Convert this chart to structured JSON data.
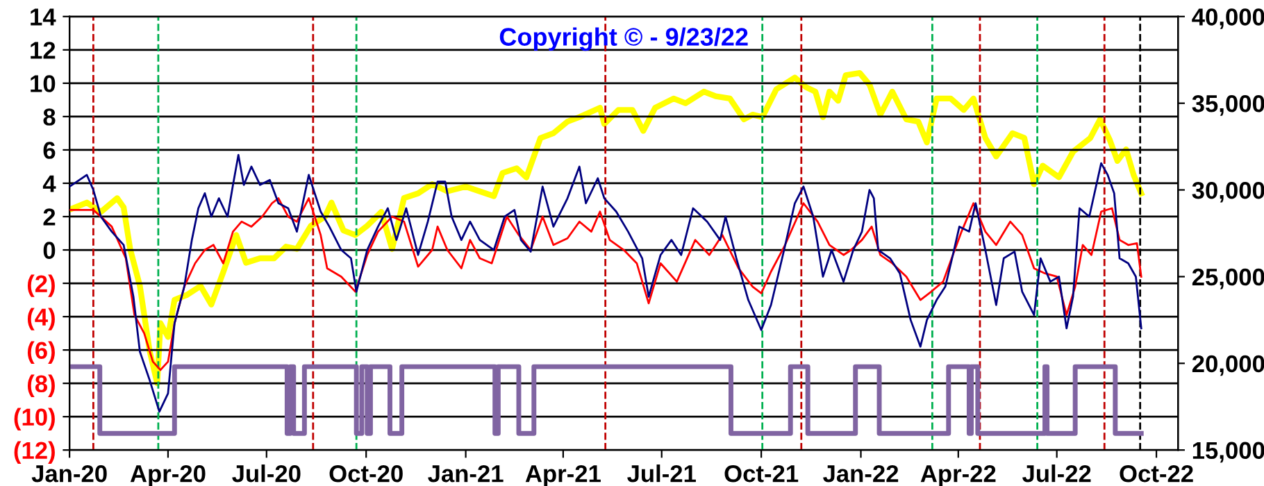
{
  "chart_data": {
    "type": "line",
    "title": "Copyright © - 9/23/22",
    "xlim": [
      "2020-01-01",
      "2022-10-21"
    ],
    "xticks": [
      {
        "value": "2020-01-01",
        "label": "Jan-20"
      },
      {
        "value": "2020-04-01",
        "label": "Apr-20"
      },
      {
        "value": "2020-07-01",
        "label": "Jul-20"
      },
      {
        "value": "2020-10-01",
        "label": "Oct-20"
      },
      {
        "value": "2021-01-01",
        "label": "Jan-21"
      },
      {
        "value": "2021-04-01",
        "label": "Apr-21"
      },
      {
        "value": "2021-07-01",
        "label": "Jul-21"
      },
      {
        "value": "2021-10-01",
        "label": "Oct-21"
      },
      {
        "value": "2022-01-01",
        "label": "Jan-22"
      },
      {
        "value": "2022-04-01",
        "label": "Apr-22"
      },
      {
        "value": "2022-07-01",
        "label": "Jul-22"
      },
      {
        "value": "2022-10-01",
        "label": "Oct-22"
      }
    ],
    "ylim": [
      -12,
      14
    ],
    "yticks": [
      14,
      12,
      10,
      8,
      6,
      4,
      2,
      0,
      {
        "value": -2,
        "label": "(2)"
      },
      {
        "value": -4,
        "label": "(4)"
      },
      {
        "value": -6,
        "label": "(6)"
      },
      {
        "value": -8,
        "label": "(8)"
      },
      {
        "value": -10,
        "label": "(10)"
      },
      {
        "value": -12,
        "label": "(12)"
      }
    ],
    "y2lim": [
      15000,
      40000
    ],
    "y2ticks": [
      {
        "value": 15000,
        "label": "15,000"
      },
      {
        "value": 20000,
        "label": "20,000"
      },
      {
        "value": 25000,
        "label": "25,000"
      },
      {
        "value": 30000,
        "label": "30,000"
      },
      {
        "value": 35000,
        "label": "35,000"
      },
      {
        "value": 40000,
        "label": "40,000"
      }
    ],
    "grid": "y",
    "ref_lines": [
      {
        "axis": "x",
        "value": "2020-01-23",
        "color": "#c00000",
        "line_style": "dashed"
      },
      {
        "axis": "x",
        "value": "2020-03-23",
        "color": "#00b050",
        "line_style": "dashed"
      },
      {
        "axis": "x",
        "value": "2020-08-13",
        "color": "#c00000",
        "line_style": "dashed"
      },
      {
        "axis": "x",
        "value": "2020-09-22",
        "color": "#00b050",
        "line_style": "dashed"
      },
      {
        "axis": "x",
        "value": "2021-05-10",
        "color": "#c00000",
        "line_style": "dashed"
      },
      {
        "axis": "x",
        "value": "2021-10-02",
        "color": "#00b050",
        "line_style": "dashed"
      },
      {
        "axis": "x",
        "value": "2021-11-07",
        "color": "#c00000",
        "line_style": "dashed"
      },
      {
        "axis": "x",
        "value": "2022-03-08",
        "color": "#00b050",
        "line_style": "dashed"
      },
      {
        "axis": "x",
        "value": "2022-04-21",
        "color": "#c00000",
        "line_style": "dashed"
      },
      {
        "axis": "x",
        "value": "2022-06-13",
        "color": "#00b050",
        "line_style": "dashed"
      },
      {
        "axis": "x",
        "value": "2022-08-14",
        "color": "#c00000",
        "line_style": "dashed"
      },
      {
        "axis": "x",
        "value": "2022-09-16",
        "color": "#000000",
        "line_style": "dashed"
      }
    ],
    "series": [
      {
        "type": "step",
        "color": "#8064a2",
        "x": [
          "2020-01-01",
          "2020-01-29",
          "2020-04-07",
          "2020-07-20",
          "2020-07-23",
          "2020-07-26",
          "2020-08-05",
          "2020-09-22",
          "2020-09-27",
          "2020-10-02",
          "2020-10-05",
          "2020-10-23",
          "2020-11-03",
          "2021-01-28",
          "2021-01-31",
          "2021-02-19",
          "2021-03-05",
          "2021-09-03",
          "2021-10-28",
          "2021-11-13",
          "2021-12-27",
          "2022-01-18",
          "2022-03-23",
          "2022-04-11",
          "2022-04-13",
          "2022-04-19",
          "2022-06-20",
          "2022-06-22",
          "2022-07-18",
          "2022-08-24",
          "2022-09-17"
        ],
        "values": [
          -7,
          -11,
          -7,
          -11,
          -7,
          -11,
          -7,
          -11,
          -7,
          -11,
          -7,
          -11,
          -7,
          -11,
          -7,
          -11,
          -7,
          -11,
          -7,
          -11,
          -7,
          -11,
          -7,
          -11,
          -7,
          -11,
          -7,
          -11,
          -7,
          -11,
          -11
        ]
      },
      {
        "axis": "y2",
        "color": "#ffff00",
        "x": [
          "2020-01-01",
          "2020-01-17",
          "2020-01-30",
          "2020-02-14",
          "2020-02-20",
          "2020-02-26",
          "2020-03-06",
          "2020-03-15",
          "2020-03-22",
          "2020-03-25",
          "2020-04-01",
          "2020-04-07",
          "2020-04-18",
          "2020-05-01",
          "2020-05-11",
          "2020-05-22",
          "2020-06-03",
          "2020-06-12",
          "2020-06-25",
          "2020-07-08",
          "2020-07-19",
          "2020-07-29",
          "2020-08-11",
          "2020-08-24",
          "2020-08-30",
          "2020-09-10",
          "2020-09-21",
          "2020-10-02",
          "2020-10-15",
          "2020-10-25",
          "2020-11-05",
          "2020-11-18",
          "2020-12-01",
          "2020-12-15",
          "2021-01-01",
          "2021-01-27",
          "2021-02-04",
          "2021-02-17",
          "2021-02-26",
          "2021-03-11",
          "2021-03-23",
          "2021-04-05",
          "2021-04-16",
          "2021-05-05",
          "2021-05-09",
          "2021-05-22",
          "2021-06-04",
          "2021-06-14",
          "2021-06-25",
          "2021-07-12",
          "2021-07-23",
          "2021-08-09",
          "2021-08-20",
          "2021-09-02",
          "2021-09-15",
          "2021-09-23",
          "2021-10-02",
          "2021-10-15",
          "2021-11-01",
          "2021-11-11",
          "2021-11-20",
          "2021-11-27",
          "2021-12-03",
          "2021-12-11",
          "2021-12-18",
          "2021-12-31",
          "2022-01-09",
          "2022-01-19",
          "2022-01-30",
          "2022-02-12",
          "2022-02-23",
          "2022-03-03",
          "2022-03-12",
          "2022-03-25",
          "2022-04-06",
          "2022-04-15",
          "2022-04-26",
          "2022-05-06",
          "2022-05-21",
          "2022-06-01",
          "2022-06-10",
          "2022-06-18",
          "2022-07-03",
          "2022-07-16",
          "2022-08-01",
          "2022-08-10",
          "2022-08-19",
          "2022-08-26",
          "2022-09-03",
          "2022-09-10",
          "2022-09-17"
        ],
        "values": [
          28860,
          29270,
          28730,
          29530,
          29000,
          26600,
          24460,
          20720,
          18850,
          22320,
          21520,
          23660,
          23930,
          24460,
          23390,
          25260,
          27400,
          25800,
          26060,
          26060,
          26730,
          26600,
          27930,
          28460,
          29270,
          27670,
          27400,
          27930,
          28730,
          26600,
          29530,
          29800,
          30330,
          29920,
          30190,
          29640,
          30980,
          31250,
          30720,
          32990,
          33270,
          33940,
          34200,
          34740,
          33800,
          34610,
          34610,
          33400,
          34740,
          35270,
          35000,
          35670,
          35400,
          35270,
          34070,
          34340,
          34200,
          35810,
          36480,
          35940,
          35670,
          34200,
          35670,
          35140,
          36610,
          36740,
          36070,
          34340,
          35670,
          34070,
          33940,
          32740,
          35270,
          35270,
          34610,
          35270,
          33000,
          31930,
          33270,
          33000,
          30330,
          31400,
          30730,
          32200,
          33000,
          34070,
          32870,
          31670,
          32340,
          30860,
          29800
        ]
      },
      {
        "color": "#ff0000",
        "x": [
          "2020-01-01",
          "2020-01-23",
          "2020-02-09",
          "2020-02-22",
          "2020-03-01",
          "2020-03-10",
          "2020-03-18",
          "2020-03-25",
          "2020-04-01",
          "2020-04-07",
          "2020-04-16",
          "2020-04-26",
          "2020-05-05",
          "2020-05-13",
          "2020-05-22",
          "2020-05-31",
          "2020-06-08",
          "2020-06-17",
          "2020-06-27",
          "2020-07-06",
          "2020-07-12",
          "2020-07-21",
          "2020-07-29",
          "2020-08-09",
          "2020-08-20",
          "2020-08-26",
          "2020-09-08",
          "2020-09-21",
          "2020-10-02",
          "2020-10-12",
          "2020-10-25",
          "2020-11-05",
          "2020-11-18",
          "2020-12-01",
          "2020-12-06",
          "2020-12-15",
          "2020-12-28",
          "2021-01-05",
          "2021-01-14",
          "2021-01-25",
          "2021-02-08",
          "2021-02-19",
          "2021-03-02",
          "2021-03-13",
          "2021-03-23",
          "2021-04-05",
          "2021-04-16",
          "2021-04-27",
          "2021-05-05",
          "2021-05-14",
          "2021-05-27",
          "2021-06-08",
          "2021-06-19",
          "2021-06-30",
          "2021-07-15",
          "2021-08-01",
          "2021-08-14",
          "2021-08-26",
          "2021-09-10",
          "2021-09-23",
          "2021-10-01",
          "2021-10-10",
          "2021-10-23",
          "2021-11-09",
          "2021-11-22",
          "2021-12-03",
          "2021-12-16",
          "2021-12-23",
          "2022-01-02",
          "2022-01-11",
          "2022-01-19",
          "2022-01-30",
          "2022-02-12",
          "2022-02-25",
          "2022-03-07",
          "2022-03-18",
          "2022-03-27",
          "2022-04-04",
          "2022-04-15",
          "2022-04-26",
          "2022-05-06",
          "2022-05-19",
          "2022-05-30",
          "2022-06-10",
          "2022-06-20",
          "2022-07-01",
          "2022-07-10",
          "2022-07-18",
          "2022-07-25",
          "2022-08-02",
          "2022-08-11",
          "2022-08-21",
          "2022-08-28",
          "2022-09-05",
          "2022-09-13",
          "2022-09-17"
        ],
        "values": [
          2.4,
          2.4,
          1.4,
          -0.5,
          -3.9,
          -5,
          -6.7,
          -7.2,
          -6.7,
          -4.4,
          -2.2,
          -0.8,
          0,
          0.3,
          -0.8,
          1.1,
          1.7,
          1.4,
          2.0,
          2.8,
          3.1,
          2.0,
          1.7,
          3.1,
          0.9,
          -1.1,
          -1.6,
          -2.5,
          -0.3,
          1.1,
          2.0,
          1.7,
          -1.0,
          0,
          1.4,
          0,
          -1.1,
          0.6,
          -0.5,
          -0.8,
          2.0,
          0.9,
          0,
          2.0,
          0.3,
          0.7,
          1.7,
          1.1,
          2.3,
          0.6,
          0,
          -0.8,
          -3.2,
          -0.8,
          -1.9,
          0.6,
          -0.3,
          0.9,
          -1.1,
          -2.2,
          -2.6,
          -1.3,
          0.3,
          2.8,
          1.7,
          0.3,
          -0.3,
          0,
          0.6,
          1.4,
          -0.3,
          -0.8,
          -1.6,
          -3.0,
          -2.5,
          -1.9,
          -0.3,
          1.1,
          2.8,
          1.1,
          0.3,
          1.7,
          0.9,
          -1.1,
          -1.4,
          -1.6,
          -3.9,
          -2.2,
          0.3,
          -0.3,
          2.3,
          2.5,
          0.6,
          0.3,
          0.4,
          -1.6
        ]
      },
      {
        "color": "#000080",
        "x": [
          "2020-01-01",
          "2020-01-17",
          "2020-01-23",
          "2020-01-30",
          "2020-02-09",
          "2020-02-20",
          "2020-02-29",
          "2020-03-06",
          "2020-03-15",
          "2020-03-24",
          "2020-04-01",
          "2020-04-07",
          "2020-04-16",
          "2020-04-23",
          "2020-04-29",
          "2020-05-05",
          "2020-05-11",
          "2020-05-18",
          "2020-05-26",
          "2020-05-31",
          "2020-06-05",
          "2020-06-10",
          "2020-06-17",
          "2020-06-25",
          "2020-07-04",
          "2020-07-12",
          "2020-07-21",
          "2020-07-29",
          "2020-08-09",
          "2020-08-20",
          "2020-08-28",
          "2020-09-08",
          "2020-09-17",
          "2020-09-22",
          "2020-10-02",
          "2020-10-12",
          "2020-10-21",
          "2020-10-29",
          "2020-11-07",
          "2020-11-18",
          "2020-11-27",
          "2020-12-06",
          "2020-12-13",
          "2020-12-19",
          "2020-12-28",
          "2021-01-05",
          "2021-01-14",
          "2021-01-27",
          "2021-02-06",
          "2021-02-15",
          "2021-02-21",
          "2021-03-02",
          "2021-03-13",
          "2021-03-23",
          "2021-04-05",
          "2021-04-16",
          "2021-04-22",
          "2021-05-03",
          "2021-05-09",
          "2021-05-20",
          "2021-05-31",
          "2021-06-13",
          "2021-06-19",
          "2021-06-30",
          "2021-07-10",
          "2021-07-19",
          "2021-07-30",
          "2021-08-12",
          "2021-08-24",
          "2021-08-29",
          "2021-09-08",
          "2021-09-19",
          "2021-10-01",
          "2021-10-10",
          "2021-10-21",
          "2021-11-01",
          "2021-11-09",
          "2021-11-18",
          "2021-11-27",
          "2021-12-05",
          "2021-12-16",
          "2021-12-25",
          "2022-01-02",
          "2022-01-09",
          "2022-01-13",
          "2022-01-17",
          "2022-01-28",
          "2022-02-06",
          "2022-02-16",
          "2022-02-25",
          "2022-03-03",
          "2022-03-12",
          "2022-03-20",
          "2022-03-27",
          "2022-04-02",
          "2022-04-11",
          "2022-04-17",
          "2022-04-26",
          "2022-05-06",
          "2022-05-13",
          "2022-05-23",
          "2022-05-30",
          "2022-06-10",
          "2022-06-16",
          "2022-06-25",
          "2022-07-03",
          "2022-07-10",
          "2022-07-16",
          "2022-07-22",
          "2022-07-31",
          "2022-08-11",
          "2022-08-17",
          "2022-08-23",
          "2022-08-28",
          "2022-09-05",
          "2022-09-12",
          "2022-09-17"
        ],
        "values": [
          3.8,
          4.5,
          3.6,
          2.0,
          1.1,
          0.3,
          -2.8,
          -6.1,
          -7.8,
          -9.7,
          -8.6,
          -4.4,
          -2.2,
          0.6,
          2.5,
          3.4,
          2.0,
          3.1,
          2.0,
          3.9,
          5.7,
          3.9,
          5.0,
          3.9,
          4.2,
          2.8,
          2.5,
          1.1,
          4.5,
          2.3,
          1.4,
          0,
          -0.5,
          -2.5,
          0,
          1.4,
          2.5,
          0.6,
          2.5,
          -0.3,
          1.7,
          4.1,
          4.1,
          2.0,
          0.6,
          1.7,
          0.6,
          0,
          2.0,
          2.4,
          0.6,
          -0.1,
          3.8,
          1.4,
          3.1,
          5.0,
          2.8,
          4.3,
          3.1,
          2.3,
          1.1,
          -0.5,
          -2.8,
          -0.3,
          0.6,
          -0.3,
          2.5,
          1.7,
          0.6,
          2.0,
          -0.5,
          -3.0,
          -4.8,
          -3.3,
          -0.3,
          2.8,
          3.8,
          2.0,
          -1.6,
          0,
          -1.9,
          0,
          1.1,
          3.6,
          3.1,
          0,
          -0.5,
          -1.4,
          -4.2,
          -5.8,
          -4.2,
          -3.0,
          -2.2,
          -0.3,
          1.4,
          1.1,
          2.8,
          0,
          -3.3,
          -0.5,
          -0.1,
          -2.5,
          -3.9,
          -0.5,
          -1.9,
          -1.6,
          -4.7,
          -2.8,
          2.5,
          2.0,
          5.2,
          4.5,
          3.4,
          -0.5,
          -0.8,
          -1.6,
          -4.7
        ]
      }
    ]
  }
}
